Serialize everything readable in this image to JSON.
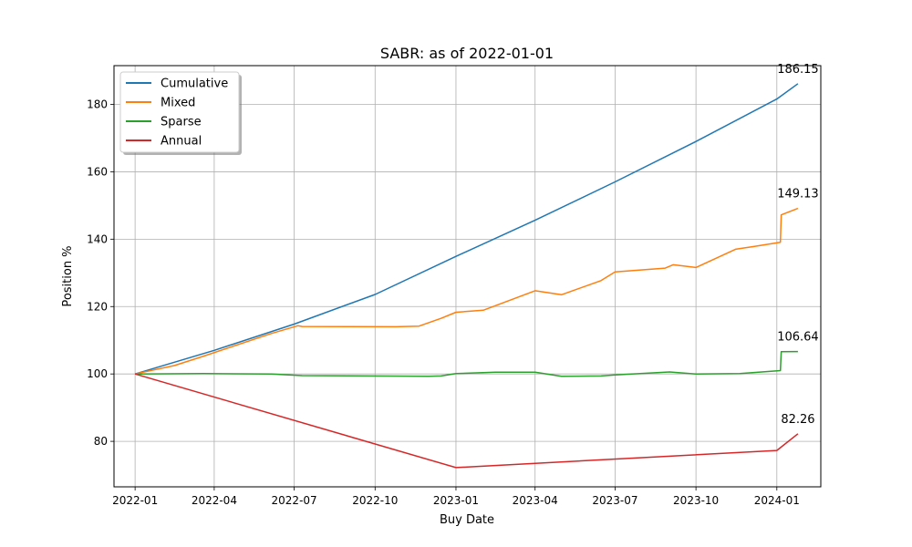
{
  "chart_data": {
    "type": "line",
    "title": "SABR: as of 2022-01-01",
    "xlabel": "Buy Date",
    "ylabel": "Position %",
    "x_ticks": [
      "2022-01",
      "2022-04",
      "2022-07",
      "2022-10",
      "2023-01",
      "2023-04",
      "2023-07",
      "2023-10",
      "2024-01"
    ],
    "y_ticks": [
      80,
      100,
      120,
      140,
      160,
      180
    ],
    "xlim": [
      "2021-12-08",
      "2024-02-20"
    ],
    "ylim": [
      66.5,
      191.5
    ],
    "grid": true,
    "legend_position": "upper-left",
    "series": [
      {
        "name": "Cumulative",
        "color": "#1f77b4",
        "end_label": "186.15",
        "points": [
          [
            "2022-01-01",
            100.0
          ],
          [
            "2022-04-01",
            107.0
          ],
          [
            "2022-07-01",
            114.8
          ],
          [
            "2022-10-01",
            123.6
          ],
          [
            "2023-01-01",
            134.9
          ],
          [
            "2023-04-01",
            145.6
          ],
          [
            "2023-07-01",
            157.0
          ],
          [
            "2023-10-01",
            169.0
          ],
          [
            "2024-01-01",
            181.6
          ],
          [
            "2024-01-25",
            186.15
          ]
        ]
      },
      {
        "name": "Mixed",
        "color": "#ff7f0e",
        "end_label": "149.13",
        "points": [
          [
            "2022-01-01",
            100.0
          ],
          [
            "2022-02-15",
            102.5
          ],
          [
            "2022-03-20",
            105.3
          ],
          [
            "2022-06-05",
            112.0
          ],
          [
            "2022-07-05",
            114.3
          ],
          [
            "2022-07-10",
            114.1
          ],
          [
            "2022-10-25",
            114.0
          ],
          [
            "2022-11-20",
            114.2
          ],
          [
            "2022-12-15",
            116.5
          ],
          [
            "2023-01-01",
            118.3
          ],
          [
            "2023-02-01",
            118.9
          ],
          [
            "2023-04-01",
            124.7
          ],
          [
            "2023-05-01",
            123.5
          ],
          [
            "2023-06-15",
            127.7
          ],
          [
            "2023-07-01",
            130.3
          ],
          [
            "2023-08-27",
            131.4
          ],
          [
            "2023-09-05",
            132.4
          ],
          [
            "2023-10-01",
            131.6
          ],
          [
            "2023-11-15",
            137.0
          ],
          [
            "2023-12-05",
            137.8
          ],
          [
            "2024-01-05",
            139.1
          ],
          [
            "2024-01-06",
            147.2
          ],
          [
            "2024-01-25",
            149.13
          ]
        ]
      },
      {
        "name": "Sparse",
        "color": "#2ca02c",
        "end_label": "106.64",
        "points": [
          [
            "2022-01-01",
            100.0
          ],
          [
            "2022-03-20",
            100.1
          ],
          [
            "2022-06-05",
            100.0
          ],
          [
            "2022-07-10",
            99.5
          ],
          [
            "2022-12-01",
            99.3
          ],
          [
            "2022-12-15",
            99.4
          ],
          [
            "2023-01-01",
            100.1
          ],
          [
            "2023-02-15",
            100.5
          ],
          [
            "2023-04-01",
            100.5
          ],
          [
            "2023-05-01",
            99.3
          ],
          [
            "2023-06-15",
            99.4
          ],
          [
            "2023-07-01",
            99.7
          ],
          [
            "2023-09-01",
            100.6
          ],
          [
            "2023-10-01",
            100.0
          ],
          [
            "2023-11-20",
            100.1
          ],
          [
            "2024-01-05",
            101.0
          ],
          [
            "2024-01-06",
            106.6
          ],
          [
            "2024-01-25",
            106.64
          ]
        ]
      },
      {
        "name": "Annual",
        "color": "#d62728",
        "end_label": "82.26",
        "points": [
          [
            "2022-01-01",
            100.0
          ],
          [
            "2023-01-01",
            72.2
          ],
          [
            "2024-01-01",
            77.3
          ],
          [
            "2024-01-25",
            82.26
          ]
        ]
      }
    ]
  }
}
